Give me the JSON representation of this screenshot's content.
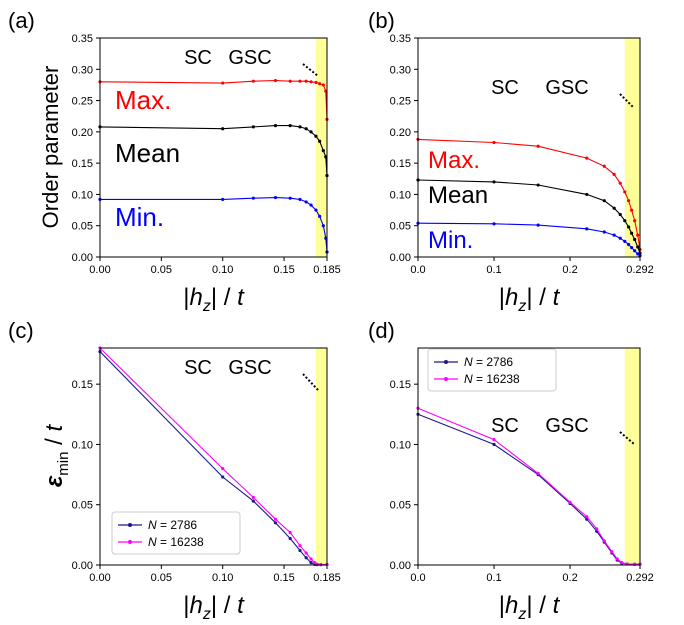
{
  "figure": {
    "shared_x_label": "|hz| / t",
    "ylabel_top": "Order parameter",
    "ylabel_bottom": "εmin / t"
  },
  "colors": {
    "max": "#ff0000",
    "mean": "#000000",
    "min": "#0000ff",
    "n2786": "#1a1a8c",
    "n16238": "#ff00ff",
    "band": "#ffff99"
  },
  "chart_data": [
    {
      "panel": "(a)",
      "type": "line",
      "xlabel": "|hz| / t",
      "ylabel": "Order parameter",
      "xlim": [
        0,
        0.185
      ],
      "ylim": [
        0,
        0.35
      ],
      "xticks": [
        "0.00",
        "0.05",
        "0.10",
        "0.15",
        "0.185"
      ],
      "yticks": [
        "0.00",
        "0.05",
        "0.10",
        "0.15",
        "0.20",
        "0.25",
        "0.30",
        "0.35"
      ],
      "shaded_region": [
        0.176,
        0.185
      ],
      "region_labels": [
        "SC",
        "GSC"
      ],
      "series": [
        {
          "name": "Max.",
          "color_key": "max",
          "x": [
            0,
            0.1,
            0.125,
            0.143,
            0.155,
            0.163,
            0.168,
            0.172,
            0.176,
            0.179,
            0.182,
            0.184,
            0.185
          ],
          "y": [
            0.28,
            0.278,
            0.281,
            0.282,
            0.281,
            0.281,
            0.281,
            0.28,
            0.279,
            0.277,
            0.275,
            0.265,
            0.22
          ]
        },
        {
          "name": "Mean",
          "color_key": "mean",
          "x": [
            0,
            0.1,
            0.125,
            0.143,
            0.155,
            0.163,
            0.168,
            0.172,
            0.176,
            0.179,
            0.182,
            0.184,
            0.185
          ],
          "y": [
            0.208,
            0.205,
            0.208,
            0.21,
            0.21,
            0.208,
            0.205,
            0.2,
            0.193,
            0.185,
            0.17,
            0.16,
            0.13
          ]
        },
        {
          "name": "Min.",
          "color_key": "min",
          "x": [
            0,
            0.1,
            0.125,
            0.143,
            0.155,
            0.163,
            0.168,
            0.172,
            0.176,
            0.179,
            0.182,
            0.184,
            0.185
          ],
          "y": [
            0.092,
            0.092,
            0.094,
            0.095,
            0.094,
            0.092,
            0.088,
            0.083,
            0.075,
            0.065,
            0.05,
            0.03,
            0.008
          ]
        }
      ]
    },
    {
      "panel": "(b)",
      "type": "line",
      "xlabel": "|hz| / t",
      "xlim": [
        0,
        0.292
      ],
      "ylim": [
        0,
        0.35
      ],
      "xticks": [
        "0.0",
        "0.1",
        "0.2",
        "0.292"
      ],
      "yticks": [
        "0.00",
        "0.05",
        "0.10",
        "0.15",
        "0.20",
        "0.25",
        "0.30",
        "0.35"
      ],
      "shaded_region": [
        0.272,
        0.292
      ],
      "region_labels": [
        "SC",
        "GSC"
      ],
      "series": [
        {
          "name": "Max.",
          "color_key": "max",
          "x": [
            0,
            0.1,
            0.158,
            0.222,
            0.245,
            0.258,
            0.266,
            0.272,
            0.277,
            0.281,
            0.285,
            0.289,
            0.292
          ],
          "y": [
            0.188,
            0.183,
            0.177,
            0.158,
            0.145,
            0.132,
            0.118,
            0.104,
            0.09,
            0.075,
            0.058,
            0.035,
            0.012
          ]
        },
        {
          "name": "Mean",
          "color_key": "mean",
          "x": [
            0,
            0.1,
            0.158,
            0.222,
            0.245,
            0.258,
            0.266,
            0.272,
            0.277,
            0.281,
            0.285,
            0.289,
            0.292
          ],
          "y": [
            0.123,
            0.12,
            0.115,
            0.1,
            0.09,
            0.078,
            0.068,
            0.058,
            0.048,
            0.038,
            0.028,
            0.016,
            0.006
          ]
        },
        {
          "name": "Min.",
          "color_key": "min",
          "x": [
            0,
            0.1,
            0.158,
            0.222,
            0.245,
            0.258,
            0.266,
            0.272,
            0.277,
            0.281,
            0.285,
            0.289,
            0.292
          ],
          "y": [
            0.054,
            0.053,
            0.051,
            0.045,
            0.04,
            0.035,
            0.03,
            0.025,
            0.02,
            0.015,
            0.01,
            0.005,
            0.002
          ]
        }
      ]
    },
    {
      "panel": "(c)",
      "type": "line",
      "xlabel": "|hz| / t",
      "ylabel": "εmin / t",
      "xlim": [
        0,
        0.185
      ],
      "ylim": [
        0,
        0.18
      ],
      "xticks": [
        "0.00",
        "0.05",
        "0.10",
        "0.15",
        "0.185"
      ],
      "yticks": [
        "0.00",
        "0.05",
        "0.10",
        "0.15"
      ],
      "shaded_region": [
        0.176,
        0.185
      ],
      "region_labels": [
        "SC",
        "GSC"
      ],
      "legend_position": "lower-left",
      "series": [
        {
          "name": "N = 2786",
          "color_key": "n2786",
          "x": [
            0,
            0.1,
            0.125,
            0.143,
            0.155,
            0.163,
            0.168,
            0.172,
            0.175,
            0.177,
            0.18,
            0.185
          ],
          "y": [
            0.177,
            0.073,
            0.053,
            0.035,
            0.022,
            0.012,
            0.006,
            0.002,
            0.0005,
            0.0003,
            0.0003,
            0.0003
          ]
        },
        {
          "name": "N = 16238",
          "color_key": "n16238",
          "x": [
            0,
            0.1,
            0.125,
            0.143,
            0.155,
            0.163,
            0.168,
            0.172,
            0.175,
            0.177,
            0.18,
            0.185
          ],
          "y": [
            0.18,
            0.08,
            0.056,
            0.038,
            0.027,
            0.016,
            0.01,
            0.005,
            0.002,
            0.0006,
            0.0004,
            0.0004
          ]
        }
      ]
    },
    {
      "panel": "(d)",
      "type": "line",
      "xlabel": "|hz| / t",
      "xlim": [
        0,
        0.292
      ],
      "ylim": [
        0,
        0.18
      ],
      "xticks": [
        "0.0",
        "0.1",
        "0.2",
        "0.292"
      ],
      "yticks": [
        "0.00",
        "0.05",
        "0.10",
        "0.15"
      ],
      "shaded_region": [
        0.272,
        0.292
      ],
      "region_labels": [
        "SC",
        "GSC"
      ],
      "legend_position": "upper-left",
      "series": [
        {
          "name": "N = 2786",
          "color_key": "n2786",
          "x": [
            0,
            0.1,
            0.158,
            0.2,
            0.222,
            0.235,
            0.245,
            0.255,
            0.262,
            0.268,
            0.275,
            0.285,
            0.292
          ],
          "y": [
            0.125,
            0.1,
            0.075,
            0.051,
            0.038,
            0.028,
            0.019,
            0.01,
            0.004,
            0.0015,
            0.0008,
            0.0006,
            0.0005
          ]
        },
        {
          "name": "N = 16238",
          "color_key": "n16238",
          "x": [
            0,
            0.1,
            0.158,
            0.2,
            0.222,
            0.235,
            0.245,
            0.255,
            0.262,
            0.268,
            0.275,
            0.285,
            0.292
          ],
          "y": [
            0.13,
            0.104,
            0.076,
            0.052,
            0.04,
            0.03,
            0.02,
            0.011,
            0.005,
            0.002,
            0.0009,
            0.0006,
            0.0005
          ]
        }
      ]
    }
  ]
}
